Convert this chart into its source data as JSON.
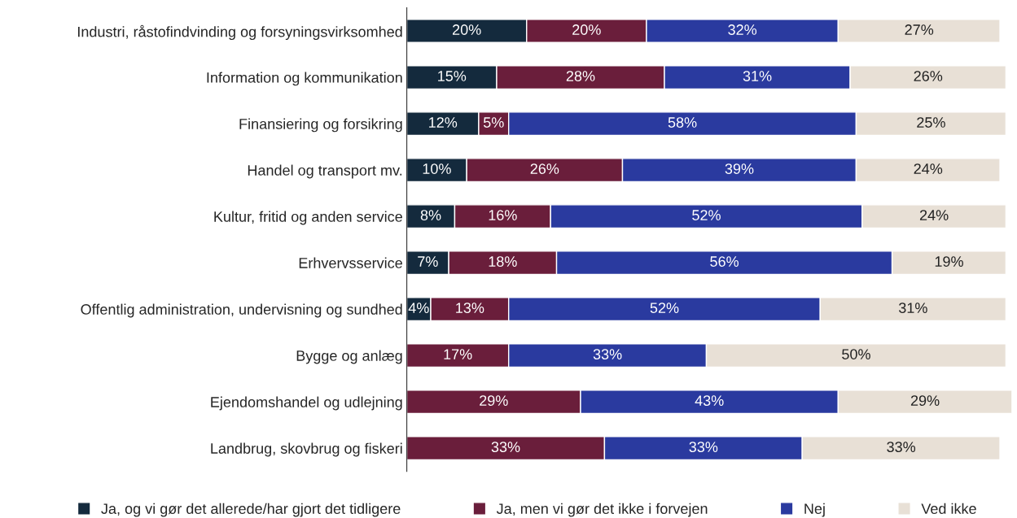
{
  "chart_data": {
    "type": "bar",
    "orientation": "horizontal",
    "stacked": true,
    "categories": [
      "Industri, råstofindvinding og forsyningsvirksomhed",
      "Information og kommunikation",
      "Finansiering og forsikring",
      "Handel og transport mv.",
      "Kultur, fritid og anden service",
      "Erhvervsservice",
      "Offentlig administration, undervisning og sundhed",
      "Bygge og anlæg",
      "Ejendomshandel og udlejning",
      "Landbrug, skovbrug og fiskeri"
    ],
    "series": [
      {
        "name": "Ja, og vi gør det allerede/har gjort det tidligere",
        "color": "#142a3d",
        "values": [
          20,
          15,
          12,
          10,
          8,
          7,
          4,
          0,
          0,
          0
        ],
        "value_labels": [
          "20%",
          "15%",
          "12%",
          "10%",
          "8%",
          "7%",
          "4%",
          null,
          null,
          null
        ]
      },
      {
        "name": "Ja, men vi gør det ikke i forvejen",
        "color": "#6a1e3b",
        "values": [
          20,
          28,
          5,
          26,
          16,
          18,
          13,
          17,
          29,
          33
        ],
        "value_labels": [
          "20%",
          "28%",
          "5%",
          "26%",
          "16%",
          "18%",
          "13%",
          "17%",
          "29%",
          "33%"
        ]
      },
      {
        "name": "Nej",
        "color": "#2a3a9f",
        "values": [
          32,
          31,
          58,
          39,
          52,
          56,
          52,
          33,
          43,
          33
        ],
        "value_labels": [
          "32%",
          "31%",
          "58%",
          "39%",
          "52%",
          "56%",
          "52%",
          "33%",
          "43%",
          "33%"
        ]
      },
      {
        "name": "Ved ikke",
        "color": "#e8e0d6",
        "values": [
          27,
          26,
          25,
          24,
          24,
          19,
          31,
          50,
          29,
          33
        ],
        "value_labels": [
          "27%",
          "26%",
          "25%",
          "24%",
          "24%",
          "19%",
          "31%",
          "50%",
          "29%",
          "33%"
        ]
      }
    ],
    "xlim": [
      0,
      101
    ],
    "tick_labels": "y",
    "grid": false,
    "legend": "bottom"
  }
}
